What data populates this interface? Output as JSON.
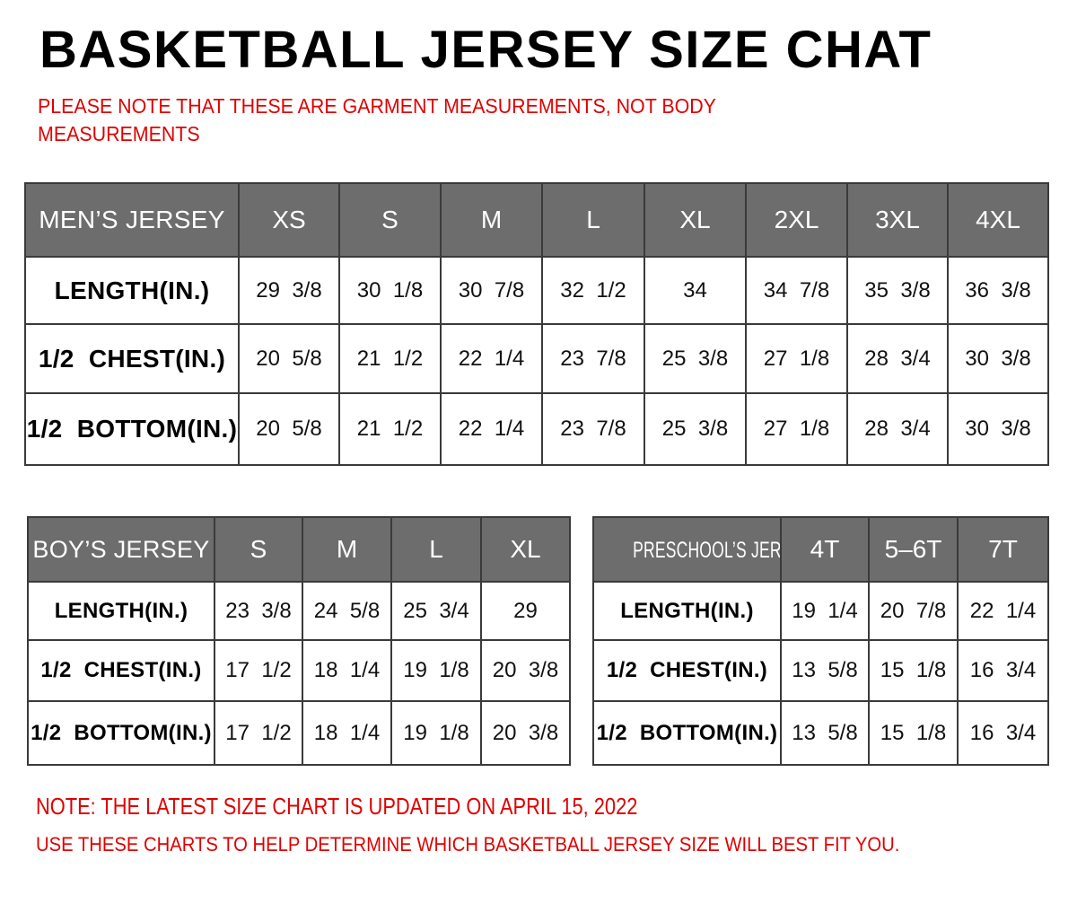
{
  "title": "BASKETBALL JERSEY SIZE CHAT",
  "subtitle_note": "PLEASE NOTE THAT THESE ARE GARMENT MEASUREMENTS, NOT BODY MEASUREMENTS",
  "colors": {
    "header_bg": "#6d6d6d",
    "note_red": "#e00000"
  },
  "tables": {
    "mens": {
      "header": [
        "MEN’S JERSEY",
        "XS",
        "S",
        "M",
        "L",
        "XL",
        "2XL",
        "3XL",
        "4XL"
      ],
      "rows": [
        [
          "LENGTH(IN.)",
          "29  3/8",
          "30  1/8",
          "30  7/8",
          "32  1/2",
          "34",
          "34  7/8",
          "35  3/8",
          "36  3/8"
        ],
        [
          "1/2  CHEST(IN.)",
          "20  5/8",
          "21  1/2",
          "22  1/4",
          "23  7/8",
          "25  3/8",
          "27  1/8",
          "28  3/4",
          "30  3/8"
        ],
        [
          "1/2  BOTTOM(IN.)",
          "20  5/8",
          "21  1/2",
          "22  1/4",
          "23  7/8",
          "25  3/8",
          "27  1/8",
          "28  3/4",
          "30  3/8"
        ]
      ]
    },
    "boys": {
      "header": [
        "BOY’S JERSEY",
        "S",
        "M",
        "L",
        "XL"
      ],
      "rows": [
        [
          "LENGTH(IN.)",
          "23  3/8",
          "24  5/8",
          "25  3/4",
          "29"
        ],
        [
          "1/2  CHEST(IN.)",
          "17  1/2",
          "18  1/4",
          "19  1/8",
          "20  3/8"
        ],
        [
          "1/2  BOTTOM(IN.)",
          "17  1/2",
          "18  1/4",
          "19  1/8",
          "20  3/8"
        ]
      ]
    },
    "pre": {
      "header": [
        "PRESCHOOL’S JERSEY",
        "4T",
        "5–6T",
        "7T"
      ],
      "rows": [
        [
          "LENGTH(IN.)",
          "19  1/4",
          "20  7/8",
          "22  1/4"
        ],
        [
          "1/2  CHEST(IN.)",
          "13  5/8",
          "15  1/8",
          "16  3/4"
        ],
        [
          "1/2  BOTTOM(IN.)",
          "13  5/8",
          "15  1/8",
          "16  3/4"
        ]
      ]
    }
  },
  "footer": {
    "update_note": "NOTE: THE LATEST SIZE CHART IS UPDATED ON APRIL 15, 2022",
    "usage_note": "USE THESE CHARTS TO HELP DETERMINE WHICH  BASKETBALL JERSEY  SIZE WILL BEST FIT YOU."
  }
}
